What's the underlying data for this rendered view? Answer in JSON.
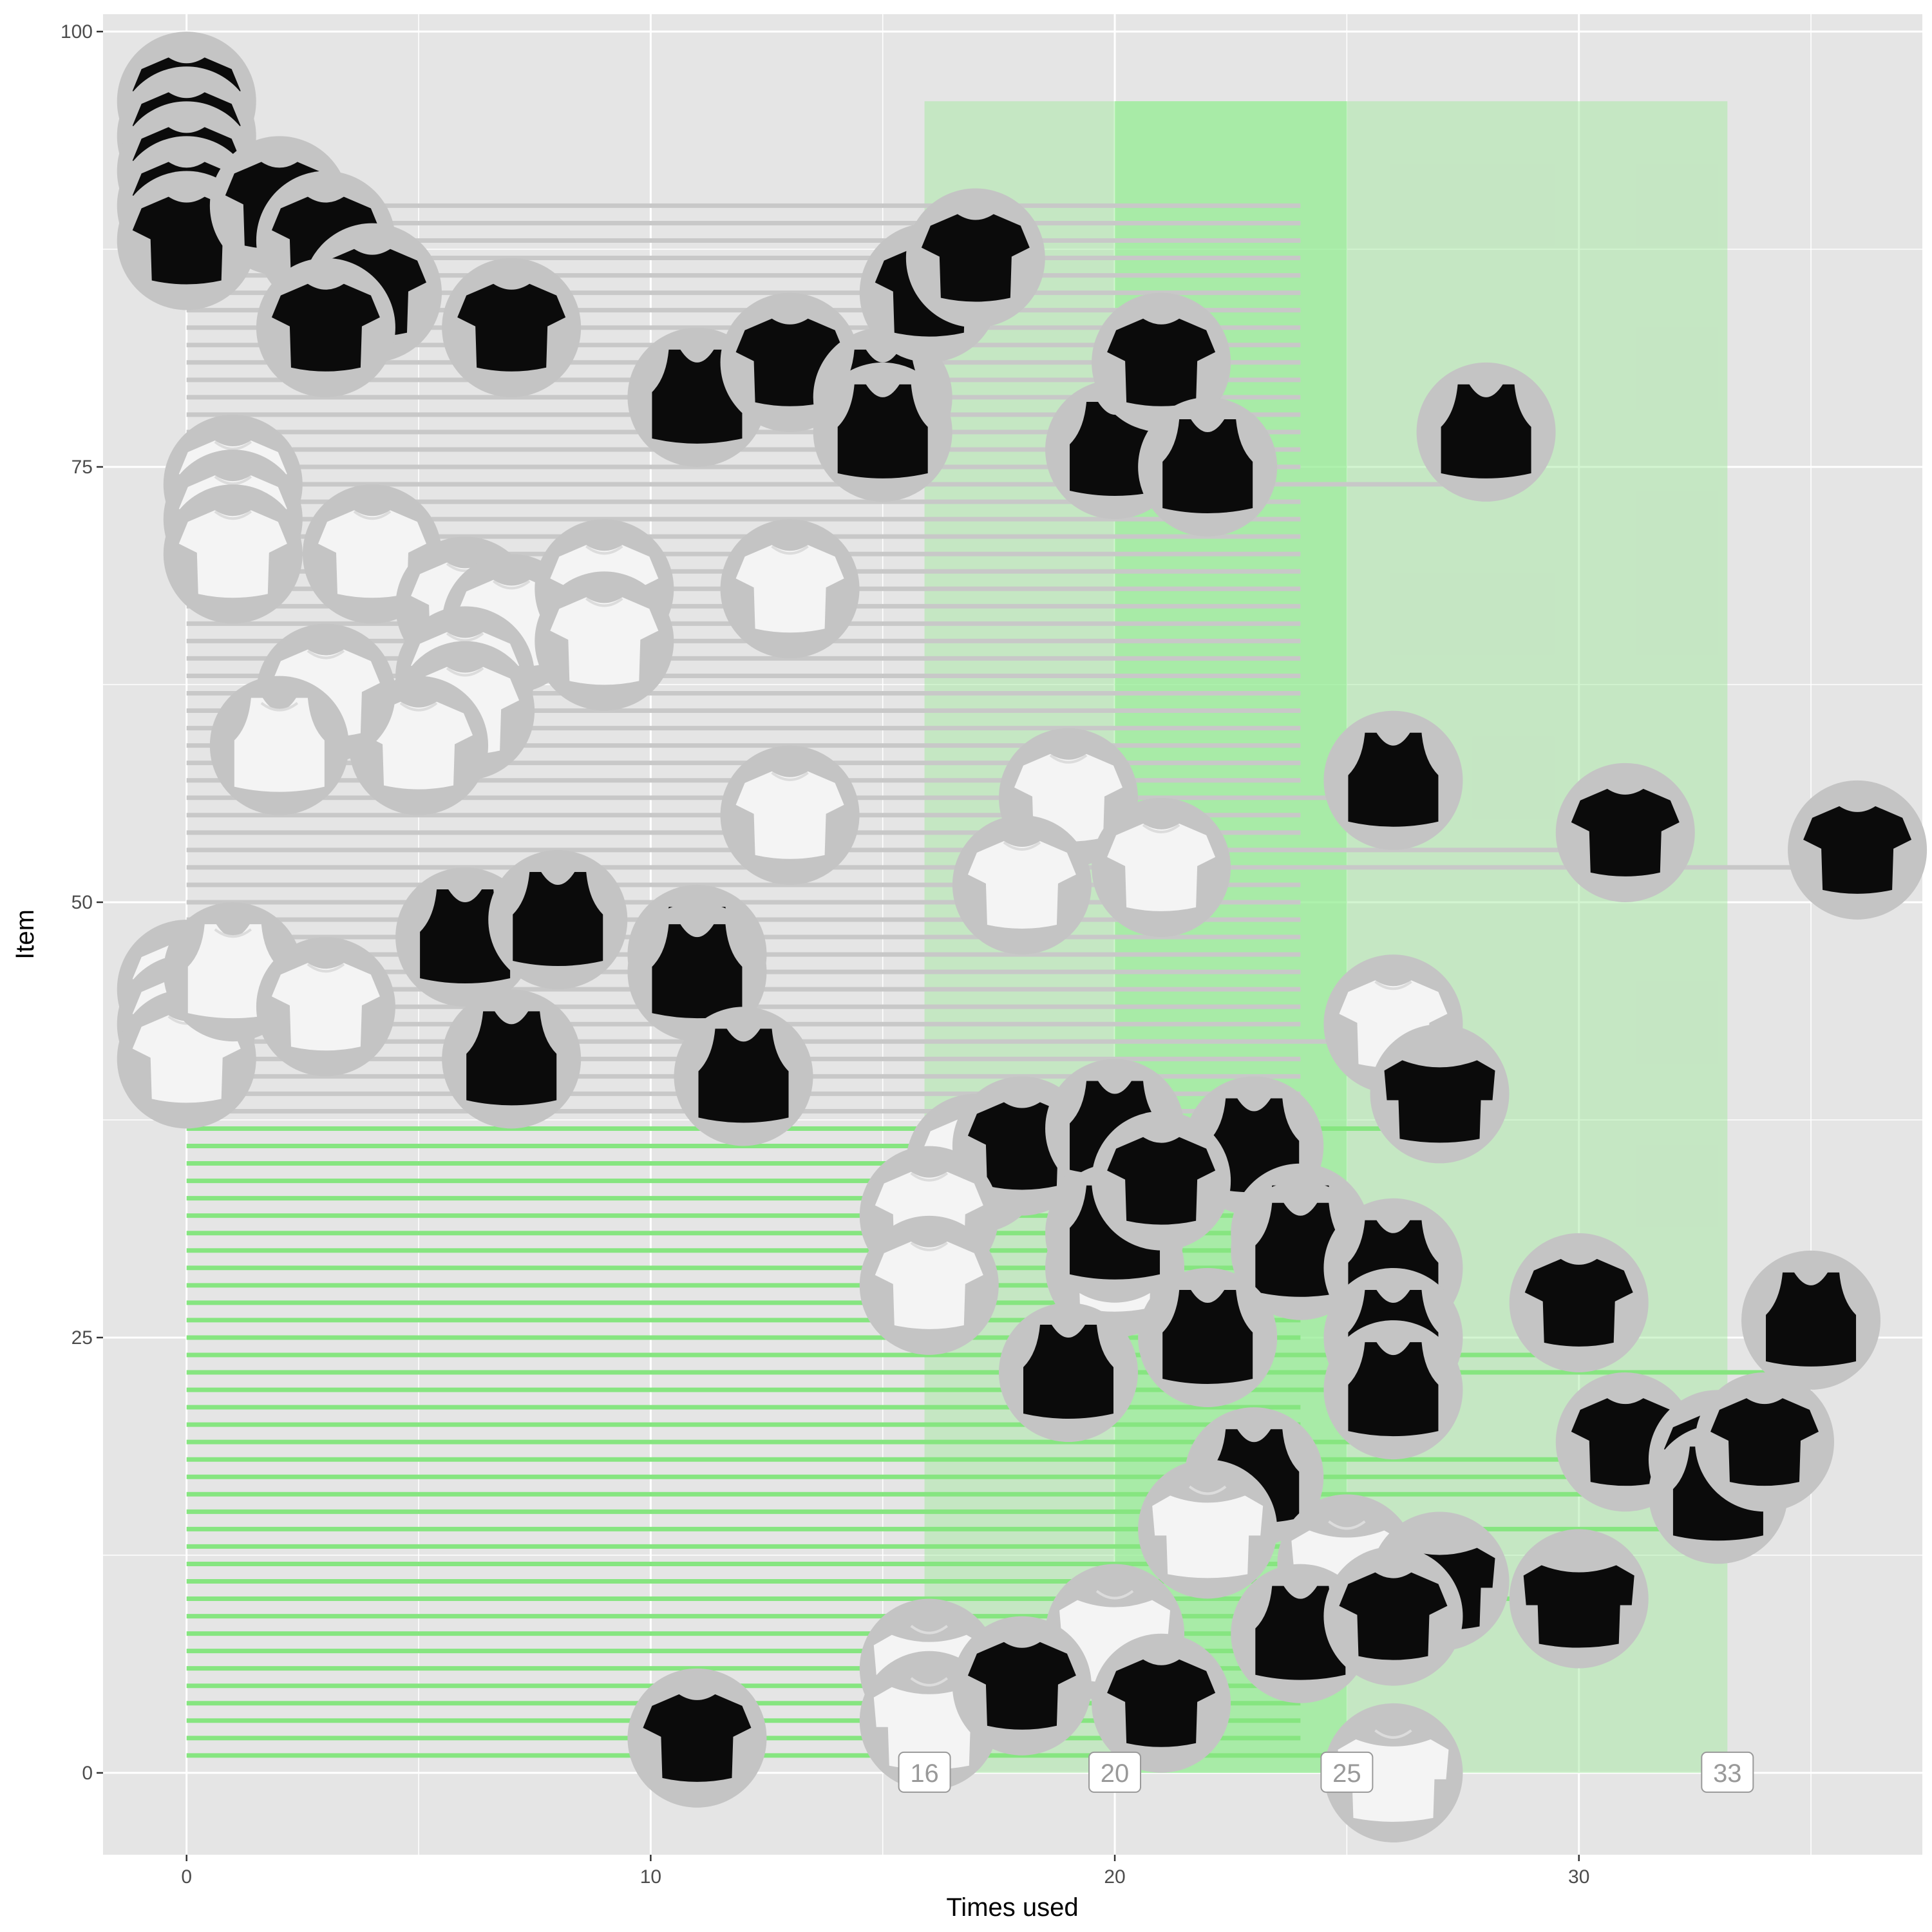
{
  "chart_data": {
    "type": "scatter",
    "title": "",
    "xlabel": "Times used",
    "ylabel": "Item",
    "xlim": [
      -1.8,
      37.4
    ],
    "ylim": [
      -4.7,
      101
    ],
    "x_ticks": [
      0,
      10,
      20,
      30
    ],
    "y_ticks": [
      0,
      25,
      50,
      75,
      100
    ],
    "grid": true,
    "legend": "none",
    "colors": {
      "panel": "#e5e5e5",
      "grid": "#ffffff",
      "band": "#9ee89a",
      "band_core": "#90ee90",
      "segment_green": "#86e580",
      "segment_grey": "#c8c8c8",
      "circle": "#c4c4c4",
      "shirt_black": "#0b0b0b",
      "shirt_white": "#f4f4f4"
    },
    "band_outer": {
      "x": [
        15.9,
        33.2
      ],
      "y": [
        0,
        96
      ]
    },
    "band_inner": {
      "x": [
        20,
        25
      ],
      "y": [
        0,
        96
      ]
    },
    "percentile_labels": [
      {
        "x": 15.9,
        "text": "16"
      },
      {
        "x": 20,
        "text": "20"
      },
      {
        "x": 25,
        "text": "25"
      },
      {
        "x": 33.2,
        "text": "33"
      }
    ],
    "segment_end_x": 24,
    "segment_split_item": 37,
    "points": [
      {
        "x": 0,
        "y": 96,
        "color": "black",
        "shape": "tee"
      },
      {
        "x": 0,
        "y": 94,
        "color": "black",
        "shape": "tee"
      },
      {
        "x": 0,
        "y": 92,
        "color": "black",
        "shape": "tee"
      },
      {
        "x": 0,
        "y": 90,
        "color": "black",
        "shape": "tee"
      },
      {
        "x": 0,
        "y": 88,
        "color": "black",
        "shape": "tee"
      },
      {
        "x": 2,
        "y": 90,
        "color": "black",
        "shape": "tee"
      },
      {
        "x": 3,
        "y": 88,
        "color": "black",
        "shape": "tee"
      },
      {
        "x": 4,
        "y": 85,
        "color": "black",
        "shape": "tee"
      },
      {
        "x": 3,
        "y": 83,
        "color": "black",
        "shape": "tee"
      },
      {
        "x": 7,
        "y": 83,
        "color": "black",
        "shape": "tee"
      },
      {
        "x": 11,
        "y": 79,
        "color": "black",
        "shape": "tank"
      },
      {
        "x": 13,
        "y": 81,
        "color": "black",
        "shape": "tee"
      },
      {
        "x": 15,
        "y": 79,
        "color": "black",
        "shape": "tank"
      },
      {
        "x": 15,
        "y": 77,
        "color": "black",
        "shape": "tank"
      },
      {
        "x": 16,
        "y": 85,
        "color": "black",
        "shape": "tee"
      },
      {
        "x": 17,
        "y": 87,
        "color": "black",
        "shape": "tee"
      },
      {
        "x": 20,
        "y": 76,
        "color": "black",
        "shape": "tank"
      },
      {
        "x": 21,
        "y": 81,
        "color": "black",
        "shape": "tee"
      },
      {
        "x": 22,
        "y": 75,
        "color": "black",
        "shape": "tank"
      },
      {
        "x": 28,
        "y": 77,
        "color": "black",
        "shape": "tank"
      },
      {
        "x": 1,
        "y": 74,
        "color": "white",
        "shape": "tee"
      },
      {
        "x": 1,
        "y": 72,
        "color": "white",
        "shape": "tee"
      },
      {
        "x": 1,
        "y": 70,
        "color": "white",
        "shape": "tee"
      },
      {
        "x": 4,
        "y": 70,
        "color": "white",
        "shape": "tee"
      },
      {
        "x": 6,
        "y": 67,
        "color": "white",
        "shape": "tee"
      },
      {
        "x": 7,
        "y": 66,
        "color": "white",
        "shape": "tee"
      },
      {
        "x": 9,
        "y": 68,
        "color": "white",
        "shape": "tee"
      },
      {
        "x": 9,
        "y": 65,
        "color": "white",
        "shape": "tee"
      },
      {
        "x": 13,
        "y": 68,
        "color": "white",
        "shape": "tee"
      },
      {
        "x": 6,
        "y": 63,
        "color": "white",
        "shape": "tee"
      },
      {
        "x": 6,
        "y": 61,
        "color": "white",
        "shape": "tee"
      },
      {
        "x": 5,
        "y": 59,
        "color": "white",
        "shape": "tee"
      },
      {
        "x": 3,
        "y": 62,
        "color": "white",
        "shape": "tee"
      },
      {
        "x": 2,
        "y": 59,
        "color": "white",
        "shape": "tank"
      },
      {
        "x": 13,
        "y": 55,
        "color": "white",
        "shape": "tee"
      },
      {
        "x": 19,
        "y": 56,
        "color": "white",
        "shape": "tee"
      },
      {
        "x": 18,
        "y": 51,
        "color": "white",
        "shape": "tee"
      },
      {
        "x": 21,
        "y": 52,
        "color": "white",
        "shape": "tee"
      },
      {
        "x": 26,
        "y": 57,
        "color": "black",
        "shape": "tank"
      },
      {
        "x": 31,
        "y": 54,
        "color": "black",
        "shape": "tee"
      },
      {
        "x": 36,
        "y": 53,
        "color": "black",
        "shape": "tee"
      },
      {
        "x": 6,
        "y": 48,
        "color": "black",
        "shape": "tank"
      },
      {
        "x": 8,
        "y": 49,
        "color": "black",
        "shape": "tank"
      },
      {
        "x": 11,
        "y": 47,
        "color": "black",
        "shape": "tank"
      },
      {
        "x": 11,
        "y": 46,
        "color": "black",
        "shape": "tank"
      },
      {
        "x": 0,
        "y": 45,
        "color": "white",
        "shape": "tee"
      },
      {
        "x": 0,
        "y": 43,
        "color": "white",
        "shape": "tee"
      },
      {
        "x": 0,
        "y": 41,
        "color": "white",
        "shape": "tee"
      },
      {
        "x": 1,
        "y": 46,
        "color": "white",
        "shape": "tank"
      },
      {
        "x": 3,
        "y": 44,
        "color": "white",
        "shape": "tee"
      },
      {
        "x": 7,
        "y": 41,
        "color": "black",
        "shape": "tank"
      },
      {
        "x": 12,
        "y": 40,
        "color": "black",
        "shape": "tank"
      },
      {
        "x": 26,
        "y": 43,
        "color": "white",
        "shape": "tee"
      },
      {
        "x": 27,
        "y": 39,
        "color": "black",
        "shape": "scoop"
      },
      {
        "x": 17,
        "y": 35,
        "color": "white",
        "shape": "tee"
      },
      {
        "x": 18,
        "y": 36,
        "color": "black",
        "shape": "tee"
      },
      {
        "x": 20,
        "y": 37,
        "color": "black",
        "shape": "tank"
      },
      {
        "x": 23,
        "y": 36,
        "color": "black",
        "shape": "tank"
      },
      {
        "x": 16,
        "y": 32,
        "color": "white",
        "shape": "tee"
      },
      {
        "x": 16,
        "y": 28,
        "color": "white",
        "shape": "tee"
      },
      {
        "x": 20,
        "y": 29,
        "color": "white",
        "shape": "tee"
      },
      {
        "x": 20,
        "y": 31,
        "color": "black",
        "shape": "tank"
      },
      {
        "x": 21,
        "y": 34,
        "color": "black",
        "shape": "tee"
      },
      {
        "x": 24,
        "y": 31,
        "color": "black",
        "shape": "tank"
      },
      {
        "x": 24,
        "y": 30,
        "color": "black",
        "shape": "tank"
      },
      {
        "x": 26,
        "y": 29,
        "color": "black",
        "shape": "tank"
      },
      {
        "x": 22,
        "y": 25,
        "color": "black",
        "shape": "tank"
      },
      {
        "x": 19,
        "y": 23,
        "color": "black",
        "shape": "tank"
      },
      {
        "x": 26,
        "y": 25,
        "color": "black",
        "shape": "tank"
      },
      {
        "x": 26,
        "y": 22,
        "color": "black",
        "shape": "tank"
      },
      {
        "x": 30,
        "y": 27,
        "color": "black",
        "shape": "tee"
      },
      {
        "x": 35,
        "y": 26,
        "color": "black",
        "shape": "tank"
      },
      {
        "x": 31,
        "y": 19,
        "color": "black",
        "shape": "tee"
      },
      {
        "x": 33,
        "y": 18,
        "color": "black",
        "shape": "tee"
      },
      {
        "x": 33,
        "y": 16,
        "color": "black",
        "shape": "tank"
      },
      {
        "x": 34,
        "y": 19,
        "color": "black",
        "shape": "tee"
      },
      {
        "x": 23,
        "y": 17,
        "color": "black",
        "shape": "tank"
      },
      {
        "x": 22,
        "y": 14,
        "color": "white",
        "shape": "scoop"
      },
      {
        "x": 25,
        "y": 12,
        "color": "white",
        "shape": "scoop"
      },
      {
        "x": 27,
        "y": 11,
        "color": "black",
        "shape": "scoop"
      },
      {
        "x": 30,
        "y": 10,
        "color": "black",
        "shape": "scoop"
      },
      {
        "x": 24,
        "y": 8,
        "color": "black",
        "shape": "tank"
      },
      {
        "x": 26,
        "y": 9,
        "color": "black",
        "shape": "tee"
      },
      {
        "x": 20,
        "y": 8,
        "color": "white",
        "shape": "scoop"
      },
      {
        "x": 16,
        "y": 6,
        "color": "white",
        "shape": "scoop"
      },
      {
        "x": 16,
        "y": 3,
        "color": "white",
        "shape": "scoop"
      },
      {
        "x": 18,
        "y": 5,
        "color": "black",
        "shape": "tee"
      },
      {
        "x": 21,
        "y": 4,
        "color": "black",
        "shape": "tee"
      },
      {
        "x": 11,
        "y": 2,
        "color": "black",
        "shape": "tee"
      },
      {
        "x": 26,
        "y": 0,
        "color": "white",
        "shape": "scoop"
      }
    ]
  }
}
